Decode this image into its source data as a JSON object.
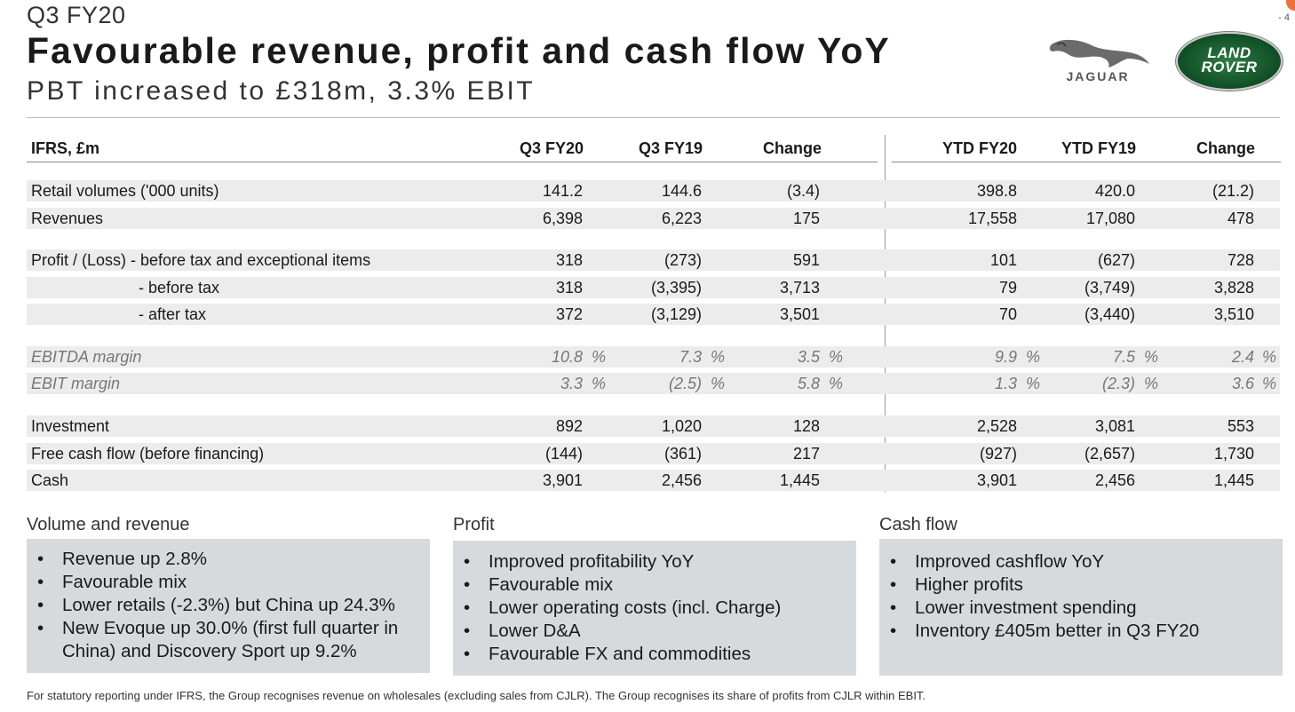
{
  "header": {
    "quarter": "Q3 FY20",
    "title": "Favourable revenue, profit and cash flow YoY",
    "subtitle": "PBT increased to £318m, 3.3% EBIT",
    "page_number": "- 4"
  },
  "logos": {
    "jaguar_text": "JAGUAR",
    "land_rover_line1": "LAND",
    "land_rover_line2": "ROVER",
    "land_rover_color": "#0f4d25"
  },
  "table": {
    "columns": [
      "IFRS, £m",
      "Q3 FY20",
      "Q3 FY19",
      "Change",
      "YTD FY20",
      "YTD FY19",
      "Change"
    ],
    "rows": [
      {
        "label": "Retail volumes ('000 units)",
        "values": [
          "141.2",
          "144.6",
          "(3.4)",
          "398.8",
          "420.0",
          "(21.2)"
        ]
      },
      {
        "label": "Revenues",
        "values": [
          "6,398",
          "6,223",
          "175",
          "17,558",
          "17,080",
          "478"
        ]
      },
      {
        "label": "Profit / (Loss) - before tax and exceptional items",
        "values": [
          "318",
          "(273)",
          "591",
          "101",
          "(627)",
          "728"
        ]
      },
      {
        "label": "- before tax",
        "values": [
          "318",
          "(3,395)",
          "3,713",
          "79",
          "(3,749)",
          "3,828"
        ]
      },
      {
        "label": "- after tax",
        "values": [
          "372",
          "(3,129)",
          "3,501",
          "70",
          "(3,440)",
          "3,510"
        ]
      },
      {
        "label": "EBITDA margin",
        "values": [
          "10.8",
          "7.3",
          "3.5",
          "9.9",
          "7.5",
          "2.4"
        ]
      },
      {
        "label": "EBIT margin",
        "values": [
          "3.3",
          "(2.5)",
          "5.8",
          "1.3",
          "(2.3)",
          "3.6"
        ]
      },
      {
        "label": "Investment",
        "values": [
          "892",
          "1,020",
          "128",
          "2,528",
          "3,081",
          "553"
        ]
      },
      {
        "label": "Free cash flow (before financing)",
        "values": [
          "(144)",
          "(361)",
          "217",
          "(927)",
          "(2,657)",
          "1,730"
        ]
      },
      {
        "label": "Cash",
        "values": [
          "3,901",
          "2,456",
          "1,445",
          "3,901",
          "2,456",
          "1,445"
        ]
      }
    ],
    "percent_sign": "%"
  },
  "boxes": [
    {
      "title": "Volume and revenue",
      "items": [
        "Revenue up 2.8%",
        "Favourable mix",
        "Lower retails (-2.3%) but China up 24.3%",
        "New Evoque up 30.0% (first full quarter in China) and Discovery Sport up 9.2%"
      ]
    },
    {
      "title": "Profit",
      "items": [
        "Improved profitability YoY",
        "Favourable mix",
        "Lower operating costs (incl. Charge)",
        "Lower D&A",
        "Favourable FX and commodities"
      ]
    },
    {
      "title": "Cash flow",
      "items": [
        "Improved cashflow YoY",
        "Higher profits",
        "Lower investment spending",
        "Inventory £405m better in Q3 FY20"
      ]
    }
  ],
  "footnote": "For statutory reporting under IFRS, the Group recognises revenue on wholesales (excluding sales from CJLR). The Group recognises its share of profits from CJLR within EBIT.",
  "colors": {
    "box_bg": "#d6dadd",
    "row_shade": "#ececec",
    "accent": "#e8743b"
  }
}
